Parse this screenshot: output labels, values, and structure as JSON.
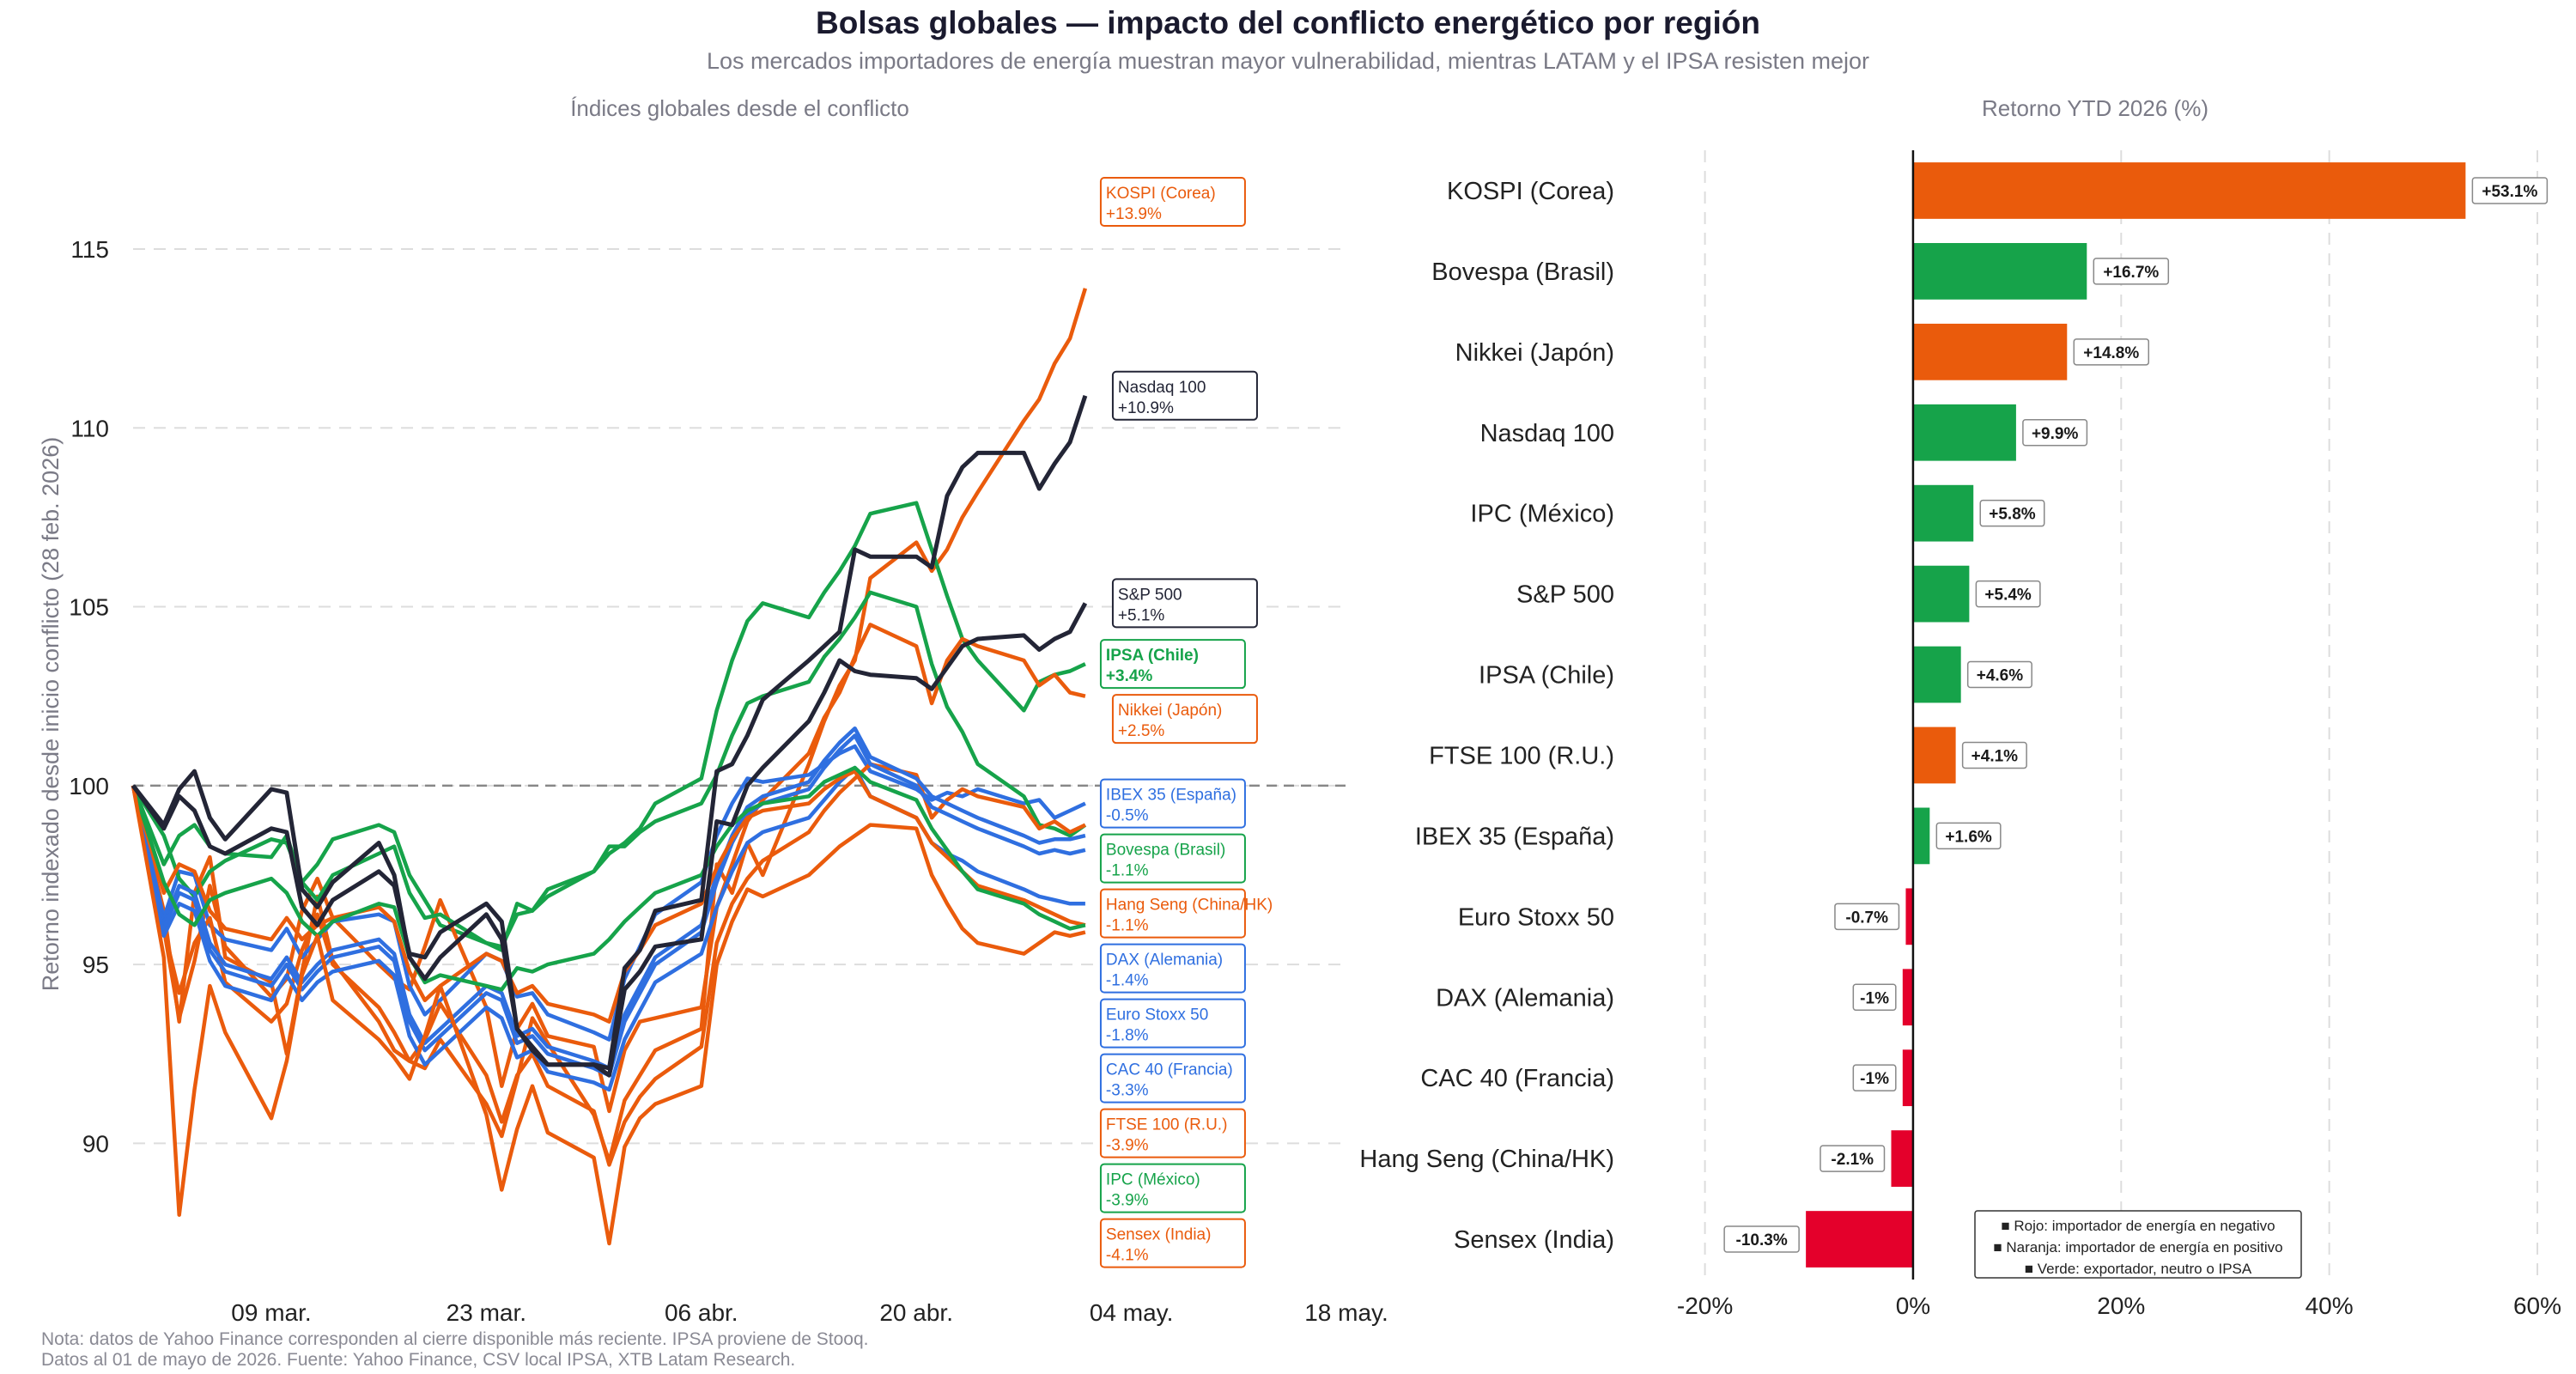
{
  "title": "Bolsas globales — impacto del conflicto energético por región",
  "subtitle": "Los mercados importadores de energía muestran mayor vulnerabilidad, mientras LATAM y el IPSA resisten mejor",
  "footnote": {
    "line1": "Nota: datos de Yahoo Finance corresponden al cierre disponible más reciente. IPSA proviene de Stooq.",
    "line2": "Datos al 01 de mayo de 2026. Fuente: Yahoo Finance, CSV local IPSA, XTB Latam Research."
  },
  "colors": {
    "red": "#e4002b",
    "orange": "#ea5b0c",
    "green": "#16a34a",
    "blue": "#2f6fe0",
    "navy": "#232536",
    "grid": "#dddddd",
    "ref": "#888888"
  },
  "chart_data": [
    {
      "type": "line",
      "title": "Índices globales desde el conflicto",
      "ylabel": "Retorno indexado desde inicio conflicto (28 feb. 2026)",
      "xlabel": "",
      "x_ticks": [
        "09 mar.",
        "23 mar.",
        "06 abr.",
        "20 abr.",
        "04 may.",
        "18 may."
      ],
      "x_range": [
        "2026-02-28",
        "2026-05-18"
      ],
      "ylim": [
        86,
        118
      ],
      "y_ticks": [
        90,
        95,
        100,
        105,
        110,
        115
      ],
      "reference_line": 100,
      "grid": "horizontal dashed",
      "x": [
        "2026-02-28",
        "2026-03-02",
        "2026-03-03",
        "2026-03-04",
        "2026-03-05",
        "2026-03-06",
        "2026-03-09",
        "2026-03-10",
        "2026-03-11",
        "2026-03-12",
        "2026-03-13",
        "2026-03-16",
        "2026-03-17",
        "2026-03-18",
        "2026-03-19",
        "2026-03-20",
        "2026-03-23",
        "2026-03-24",
        "2026-03-25",
        "2026-03-26",
        "2026-03-27",
        "2026-03-30",
        "2026-03-31",
        "2026-04-01",
        "2026-04-02",
        "2026-04-03",
        "2026-04-06",
        "2026-04-07",
        "2026-04-08",
        "2026-04-09",
        "2026-04-10",
        "2026-04-13",
        "2026-04-14",
        "2026-04-15",
        "2026-04-16",
        "2026-04-17",
        "2026-04-20",
        "2026-04-21",
        "2026-04-22",
        "2026-04-23",
        "2026-04-24",
        "2026-04-27",
        "2026-04-28",
        "2026-04-29",
        "2026-04-30",
        "2026-05-01"
      ],
      "series": [
        {
          "name": "KOSPI (Corea)",
          "label": "+13.9%",
          "color": "orange",
          "values": [
            100,
            96.5,
            93.4,
            97.0,
            98.0,
            95.2,
            94.5,
            92.5,
            94.8,
            96.9,
            95.1,
            93.4,
            92.6,
            92.3,
            92.1,
            92.9,
            91.1,
            90.2,
            91.8,
            93.5,
            92.8,
            90.8,
            89.5,
            91.2,
            91.9,
            92.6,
            93.2,
            97.8,
            97.0,
            98.4,
            97.5,
            100.6,
            101.8,
            102.8,
            103.5,
            105.8,
            106.8,
            106.0,
            106.6,
            107.5,
            108.2,
            110.2,
            110.8,
            111.8,
            112.5,
            113.9
          ]
        },
        {
          "name": "Nasdaq 100",
          "label": "+10.9%",
          "color": "navy",
          "values": [
            100,
            98.9,
            99.9,
            100.4,
            99.1,
            98.5,
            99.9,
            99.8,
            97.1,
            96.6,
            97.3,
            98.4,
            97.5,
            95.2,
            94.6,
            95.2,
            96.4,
            95.7,
            93.2,
            92.6,
            92.2,
            92.2,
            92.1,
            94.9,
            95.4,
            96.5,
            96.8,
            100.4,
            100.6,
            101.4,
            102.4,
            103.5,
            103.9,
            104.3,
            106.6,
            106.4,
            106.4,
            106.1,
            108.1,
            108.9,
            109.3,
            109.3,
            108.3,
            109.0,
            109.6,
            110.9
          ]
        },
        {
          "name": "S&P 500",
          "label": "+5.1%",
          "color": "navy",
          "values": [
            100,
            98.8,
            99.7,
            99.3,
            98.3,
            98.1,
            98.8,
            98.7,
            96.6,
            96.1,
            96.8,
            97.6,
            97.2,
            95.3,
            95.2,
            95.9,
            96.7,
            96.2,
            93.2,
            92.7,
            92.2,
            92.2,
            91.9,
            94.3,
            94.8,
            95.5,
            95.7,
            99.0,
            98.9,
            100.0,
            100.5,
            101.8,
            102.6,
            103.5,
            103.2,
            103.1,
            103.0,
            102.7,
            103.3,
            103.9,
            104.1,
            104.2,
            103.8,
            104.1,
            104.3,
            105.1
          ]
        },
        {
          "name": "IPSA (Chile)",
          "label": "+3.4%",
          "color": "green",
          "values": [
            100,
            97.8,
            98.6,
            98.9,
            98.3,
            98.1,
            98.0,
            98.6,
            97.3,
            97.8,
            98.5,
            98.9,
            98.7,
            97.5,
            96.8,
            96.1,
            95.6,
            95.4,
            96.7,
            96.5,
            96.9,
            97.6,
            98.1,
            98.4,
            98.8,
            99.5,
            100.2,
            102.1,
            103.5,
            104.6,
            105.1,
            104.7,
            105.4,
            106.0,
            106.7,
            107.6,
            107.9,
            106.6,
            105.3,
            104.1,
            103.5,
            102.1,
            102.9,
            103.1,
            103.2,
            103.4
          ]
        },
        {
          "name": "Nikkei (Japón)",
          "label": "+2.5%",
          "color": "orange",
          "values": [
            100,
            96.0,
            93.5,
            95.1,
            97.2,
            95.5,
            94.1,
            94.6,
            96.5,
            97.4,
            96.3,
            95.0,
            94.6,
            94.3,
            95.5,
            96.8,
            93.8,
            91.6,
            93.2,
            93.9,
            93.0,
            92.7,
            90.9,
            92.6,
            93.4,
            93.5,
            93.8,
            96.6,
            97.8,
            99.0,
            99.6,
            100.9,
            101.9,
            102.6,
            103.6,
            104.5,
            103.9,
            102.3,
            103.5,
            104.1,
            103.9,
            103.5,
            102.8,
            103.1,
            102.6,
            102.5
          ]
        },
        {
          "name": "IBEX 35 (España)",
          "label": "-0.5%",
          "color": "blue",
          "values": [
            100,
            96.3,
            97.6,
            97.5,
            96.1,
            95.7,
            95.4,
            96.0,
            95.2,
            95.7,
            96.2,
            96.4,
            96.2,
            94.4,
            93.6,
            94.0,
            95.3,
            95.1,
            94.1,
            94.2,
            93.6,
            93.1,
            92.9,
            94.6,
            95.5,
            96.4,
            97.3,
            98.6,
            99.5,
            100.2,
            100.1,
            100.3,
            100.6,
            100.9,
            101.1,
            100.4,
            99.9,
            99.6,
            99.8,
            99.7,
            99.9,
            99.5,
            99.6,
            99.1,
            99.3,
            99.5
          ]
        },
        {
          "name": "Bovespa (Brasil)",
          "label": "-1.1%",
          "color": "green",
          "values": [
            100,
            98.6,
            97.4,
            96.9,
            97.6,
            97.9,
            98.5,
            98.4,
            97.3,
            96.8,
            97.5,
            98.1,
            98.3,
            97.0,
            96.3,
            96.4,
            95.6,
            95.5,
            96.4,
            96.5,
            97.1,
            97.6,
            98.3,
            98.3,
            98.7,
            99.0,
            99.5,
            100.3,
            101.4,
            102.3,
            102.5,
            102.9,
            103.6,
            104.1,
            104.7,
            105.4,
            105.0,
            103.4,
            102.2,
            101.5,
            100.6,
            99.7,
            98.9,
            98.8,
            98.6,
            98.9
          ]
        },
        {
          "name": "Hang Seng (China/HK)",
          "label": "-1.1%",
          "color": "orange",
          "values": [
            100,
            96.0,
            94.2,
            95.6,
            96.3,
            94.5,
            93.4,
            93.9,
            95.4,
            96.4,
            95.0,
            93.8,
            93.1,
            92.3,
            92.9,
            93.9,
            91.9,
            90.6,
            91.9,
            92.5,
            91.6,
            90.9,
            89.4,
            90.6,
            91.3,
            91.8,
            92.7,
            95.6,
            96.7,
            97.4,
            97.9,
            98.7,
            99.3,
            99.8,
            100.2,
            100.6,
            100.3,
            99.1,
            99.6,
            99.9,
            99.7,
            99.4,
            98.8,
            99.0,
            98.7,
            98.9
          ]
        },
        {
          "name": "DAX (Alemania)",
          "label": "-1.4%",
          "color": "blue",
          "values": [
            100,
            96.1,
            97.2,
            97.0,
            95.6,
            95.0,
            94.6,
            95.2,
            94.5,
            95.0,
            95.4,
            95.7,
            95.3,
            93.6,
            92.8,
            93.2,
            94.4,
            94.2,
            93.0,
            93.2,
            92.7,
            92.3,
            92.1,
            93.6,
            94.4,
            95.2,
            96.1,
            97.5,
            98.6,
            99.4,
            99.7,
            100.1,
            100.7,
            101.2,
            101.6,
            100.8,
            100.2,
            99.7,
            99.5,
            99.3,
            99.1,
            98.6,
            98.4,
            98.5,
            98.5,
            98.6
          ]
        },
        {
          "name": "Euro Stoxx 50",
          "label": "-1.8%",
          "color": "blue",
          "values": [
            100,
            96.0,
            97.0,
            96.8,
            95.4,
            94.8,
            94.4,
            95.0,
            94.3,
            94.8,
            95.2,
            95.5,
            95.1,
            93.4,
            92.6,
            93.0,
            94.2,
            94.0,
            92.8,
            93.0,
            92.5,
            92.1,
            91.9,
            93.4,
            94.2,
            95.0,
            95.9,
            97.3,
            98.4,
            99.2,
            99.5,
            99.9,
            100.5,
            101.0,
            101.4,
            100.6,
            100.0,
            99.4,
            99.2,
            99.0,
            98.8,
            98.3,
            98.1,
            98.2,
            98.1,
            98.2
          ]
        },
        {
          "name": "CAC 40 (Francia)",
          "label": "-3.3%",
          "color": "blue",
          "values": [
            100,
            95.8,
            96.7,
            96.5,
            95.1,
            94.4,
            94.0,
            94.7,
            94.0,
            94.5,
            94.8,
            95.1,
            94.7,
            93.0,
            92.2,
            92.6,
            93.8,
            93.5,
            92.4,
            92.6,
            92.0,
            91.7,
            91.5,
            92.9,
            93.7,
            94.5,
            95.3,
            96.6,
            97.6,
            98.4,
            98.7,
            99.1,
            99.6,
            100.1,
            100.5,
            99.7,
            99.1,
            98.4,
            98.1,
            97.9,
            97.6,
            97.1,
            96.9,
            96.8,
            96.7,
            96.7
          ]
        },
        {
          "name": "FTSE 100 (R.U.)",
          "label": "-3.9%",
          "color": "orange",
          "values": [
            100,
            97.0,
            97.8,
            97.6,
            96.5,
            96.0,
            95.7,
            96.3,
            95.7,
            96.1,
            96.3,
            96.6,
            96.2,
            94.8,
            94.0,
            94.4,
            95.3,
            95.1,
            94.2,
            94.4,
            93.9,
            93.6,
            93.4,
            94.8,
            95.4,
            96.1,
            96.7,
            97.7,
            98.5,
            99.1,
            99.3,
            99.5,
            99.9,
            100.2,
            100.4,
            99.7,
            99.1,
            98.4,
            98.0,
            97.6,
            97.2,
            96.8,
            96.6,
            96.4,
            96.2,
            96.1
          ]
        },
        {
          "name": "IPC (México)",
          "label": "-3.9%",
          "color": "green",
          "values": [
            100,
            97.3,
            96.4,
            96.1,
            96.8,
            97.0,
            97.4,
            97.0,
            96.2,
            95.8,
            96.2,
            96.7,
            96.6,
            95.2,
            94.5,
            94.7,
            94.4,
            94.3,
            94.9,
            94.8,
            95.0,
            95.3,
            95.7,
            96.2,
            96.6,
            97.0,
            97.5,
            98.3,
            98.9,
            99.3,
            99.5,
            99.7,
            100.1,
            100.3,
            100.5,
            100.1,
            99.6,
            98.8,
            98.2,
            97.6,
            97.1,
            96.7,
            96.4,
            96.2,
            96.0,
            96.1
          ]
        },
        {
          "name": "Sensex (India)",
          "label": "-4.1%",
          "color": "orange",
          "values": [
            100,
            95.2,
            88.0,
            91.5,
            94.4,
            93.1,
            90.7,
            92.3,
            94.7,
            95.8,
            94.0,
            92.9,
            92.4,
            91.8,
            93.0,
            94.4,
            90.8,
            88.7,
            90.4,
            91.6,
            90.3,
            89.6,
            87.2,
            89.9,
            90.7,
            91.1,
            91.6,
            95.0,
            96.2,
            97.1,
            96.9,
            97.5,
            97.9,
            98.3,
            98.6,
            98.9,
            98.8,
            97.5,
            96.7,
            96.0,
            95.6,
            95.3,
            95.6,
            95.9,
            95.8,
            95.9
          ]
        }
      ]
    },
    {
      "type": "bar",
      "orientation": "horizontal",
      "title": "Retorno YTD 2026 (%)",
      "xlabel": "",
      "ylabel": "",
      "xlim": [
        -25,
        60
      ],
      "x_ticks": [
        "-20%",
        "0%",
        "20%",
        "40%",
        "60%"
      ],
      "grid": "vertical dashed",
      "categories": [
        "KOSPI (Corea)",
        "Bovespa (Brasil)",
        "Nikkei (Japón)",
        "Nasdaq 100",
        "IPC (México)",
        "S&P 500",
        "IPSA (Chile)",
        "FTSE 100 (R.U.)",
        "IBEX 35 (España)",
        "Euro Stoxx 50",
        "DAX (Alemania)",
        "CAC 40 (Francia)",
        "Hang Seng (China/HK)",
        "Sensex (India)"
      ],
      "values": [
        53.1,
        16.7,
        14.8,
        9.9,
        5.8,
        5.4,
        4.6,
        4.1,
        1.6,
        -0.7,
        -1.0,
        -1.0,
        -2.1,
        -10.3
      ],
      "labels": [
        "+53.1%",
        "+16.7%",
        "+14.8%",
        "+9.9%",
        "+5.8%",
        "+5.4%",
        "+4.6%",
        "+4.1%",
        "+1.6%",
        "-0.7%",
        "-1%",
        "-1%",
        "-2.1%",
        "-10.3%"
      ],
      "colors": [
        "orange",
        "green",
        "orange",
        "green",
        "green",
        "green",
        "green",
        "orange",
        "green",
        "red",
        "red",
        "red",
        "red",
        "red"
      ],
      "legend": {
        "placement": "bottom-right",
        "items": [
          "■ Rojo: importador de energía en negativo",
          "■ Naranja: importador de energía en positivo",
          "■ Verde: exportador, neutro o IPSA"
        ]
      }
    }
  ]
}
